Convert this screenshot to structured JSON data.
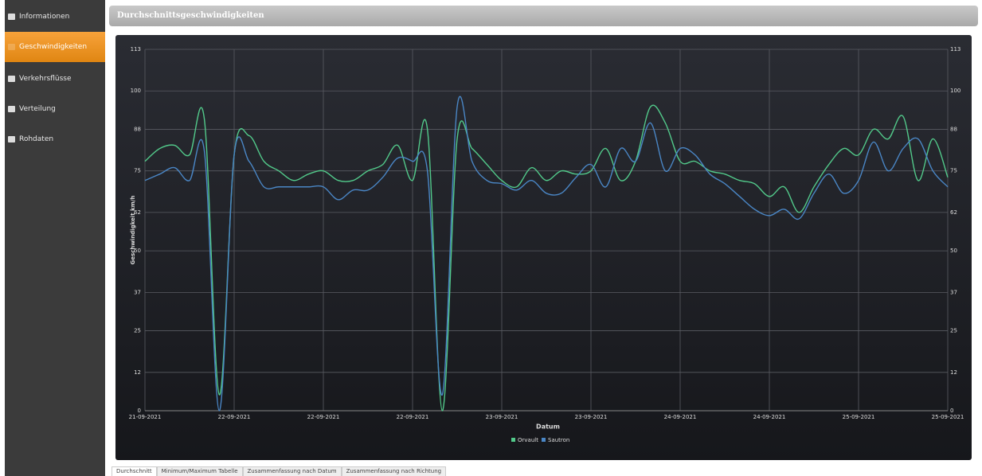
{
  "sidebar": {
    "items": [
      "Informationen",
      "Geschwindigkeiten",
      "Verkehrsflüsse",
      "Verteilung",
      "Rohdaten"
    ]
  },
  "header": {
    "title": "Durchschnittsgeschwindigkeiten"
  },
  "tabs": [
    "Durchschnitt",
    "Minimum/Maximum Tabelle",
    "Zusammenfassung nach Datum",
    "Zusammenfassung nach Richtung"
  ],
  "chart_data": {
    "type": "line",
    "x_label": "Datum",
    "y_label": "Geschwindigkeit km/h",
    "categories": [
      "21-09-2021",
      null,
      null,
      null,
      null,
      null,
      "22-09-2021",
      null,
      null,
      null,
      null,
      null,
      "22-09-2021",
      null,
      null,
      null,
      null,
      null,
      "22-09-2021",
      null,
      null,
      null,
      null,
      null,
      "23-09-2021",
      null,
      null,
      null,
      null,
      null,
      "23-09-2021",
      null,
      null,
      null,
      null,
      null,
      "24-09-2021",
      null,
      null,
      null,
      null,
      null,
      "24-09-2021",
      null,
      null,
      null,
      null,
      null,
      "25-09-2021",
      null,
      null,
      null,
      null,
      null,
      "25-09-2021"
    ],
    "series": [
      {
        "name": "Orvault",
        "color": "#52c98a",
        "values": [
          78,
          82,
          83,
          80,
          91,
          5,
          80,
          86,
          78,
          75,
          72,
          74,
          75,
          72,
          72,
          75,
          77,
          83,
          72,
          88,
          0,
          85,
          82,
          77,
          72,
          70,
          76,
          72,
          75,
          74,
          75,
          82,
          72,
          78,
          95,
          90,
          78,
          78,
          75,
          74,
          72,
          71,
          67,
          70,
          62,
          70,
          77,
          82,
          80,
          88,
          85,
          92,
          72,
          85,
          73
        ]
      },
      {
        "name": "Sautron",
        "color": "#4a86c5",
        "values": [
          72,
          74,
          76,
          72,
          81,
          0,
          80,
          78,
          70,
          70,
          70,
          70,
          70,
          66,
          69,
          69,
          73,
          79,
          78,
          75,
          5,
          95,
          78,
          72,
          71,
          69,
          72,
          68,
          68,
          73,
          77,
          70,
          82,
          78,
          90,
          75,
          82,
          80,
          74,
          71,
          67,
          63,
          61,
          63,
          60,
          68,
          74,
          68,
          72,
          84,
          75,
          82,
          85,
          75,
          70
        ]
      }
    ],
    "ylim": [
      0,
      113
    ],
    "yticks": [
      0,
      12,
      25,
      37,
      50,
      62,
      75,
      88,
      100,
      113
    ],
    "grid": true
  }
}
